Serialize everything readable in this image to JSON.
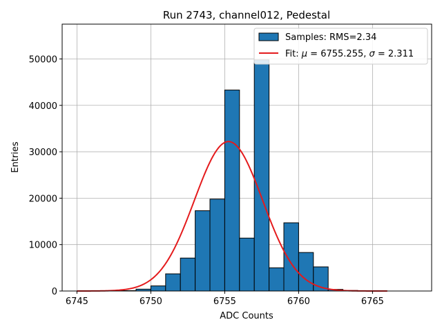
{
  "chart_data": {
    "type": "bar",
    "title": "Run 2743, channel012, Pedestal",
    "xlabel": "ADC Counts",
    "ylabel": "Entries",
    "xlim": [
      6744,
      6769
    ],
    "ylim": [
      0,
      57500
    ],
    "grid": true,
    "legend_placement": "top-right",
    "bin_width": 1,
    "x_ticks": [
      6745,
      6750,
      6755,
      6760,
      6765
    ],
    "y_ticks": [
      0,
      10000,
      20000,
      30000,
      40000,
      50000
    ],
    "histogram": {
      "name": "Samples: RMS=2.34",
      "color": "#1f77b4",
      "edge_color": "#000000",
      "bins": [
        {
          "x": 6748,
          "count": 80
        },
        {
          "x": 6749,
          "count": 400
        },
        {
          "x": 6750,
          "count": 1100
        },
        {
          "x": 6751,
          "count": 3700
        },
        {
          "x": 6752,
          "count": 7100
        },
        {
          "x": 6753,
          "count": 17300
        },
        {
          "x": 6754,
          "count": 19800
        },
        {
          "x": 6755,
          "count": 43300
        },
        {
          "x": 6756,
          "count": 11400
        },
        {
          "x": 6757,
          "count": 49800
        },
        {
          "x": 6758,
          "count": 5000
        },
        {
          "x": 6759,
          "count": 14700
        },
        {
          "x": 6760,
          "count": 8300
        },
        {
          "x": 6761,
          "count": 5200
        },
        {
          "x": 6762,
          "count": 350
        },
        {
          "x": 6763,
          "count": 120
        }
      ]
    },
    "fit": {
      "name_prefix": "Fit: ",
      "mu_symbol": "μ",
      "mu_text": " = 6755.255, ",
      "sigma_symbol": "σ",
      "sigma_text": " = 2.311",
      "mu": 6755.255,
      "sigma": 2.311,
      "amplitude": 32200,
      "x_range": [
        6745,
        6766
      ],
      "color": "#e41a1c"
    }
  }
}
